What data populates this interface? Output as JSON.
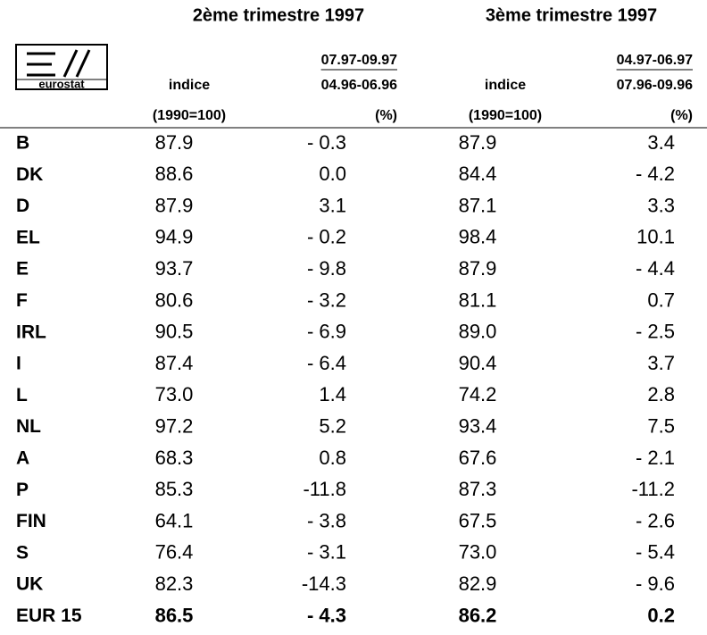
{
  "logo": "eurostat",
  "header": {
    "groups": [
      "2ème trimestre 1997",
      "3ème trimestre 1997"
    ],
    "columns": [
      {
        "line1": "",
        "line2": "indice",
        "line3": "(1990=100)"
      },
      {
        "line1": "07.97-09.97",
        "line2": "04.96-06.96",
        "line3": "(%)"
      },
      {
        "line1": "",
        "line2": "indice",
        "line3": "(1990=100)"
      },
      {
        "line1": "04.97-06.97",
        "line2": "07.96-09.96",
        "line3": "(%)"
      }
    ]
  },
  "table": {
    "rows": [
      [
        "B",
        "87.9",
        "- 0.3",
        "87.9",
        "3.4"
      ],
      [
        "DK",
        "88.6",
        "0.0",
        "84.4",
        "- 4.2"
      ],
      [
        "D",
        "87.9",
        "3.1",
        "87.1",
        "3.3"
      ],
      [
        "EL",
        "94.9",
        "- 0.2",
        "98.4",
        "10.1"
      ],
      [
        "E",
        "93.7",
        "- 9.8",
        "87.9",
        "- 4.4"
      ],
      [
        "F",
        "80.6",
        "- 3.2",
        "81.1",
        "0.7"
      ],
      [
        "IRL",
        "90.5",
        "- 6.9",
        "89.0",
        "- 2.5"
      ],
      [
        "I",
        "87.4",
        "- 6.4",
        "90.4",
        "3.7"
      ],
      [
        "L",
        "73.0",
        "1.4",
        "74.2",
        "2.8"
      ],
      [
        "NL",
        "97.2",
        "5.2",
        "93.4",
        "7.5"
      ],
      [
        "A",
        "68.3",
        "0.8",
        "67.6",
        "- 2.1"
      ],
      [
        "P",
        "85.3",
        "-11.8",
        "87.3",
        "-11.2"
      ],
      [
        "FIN",
        "64.1",
        "- 3.8",
        "67.5",
        "- 2.6"
      ],
      [
        "S",
        "76.4",
        "- 3.1",
        "73.0",
        "- 5.4"
      ],
      [
        "UK",
        "82.3",
        "-14.3",
        "82.9",
        "- 9.6"
      ],
      [
        "EUR 15",
        "86.5",
        "- 4.3",
        "86.2",
        "0.2"
      ]
    ]
  }
}
